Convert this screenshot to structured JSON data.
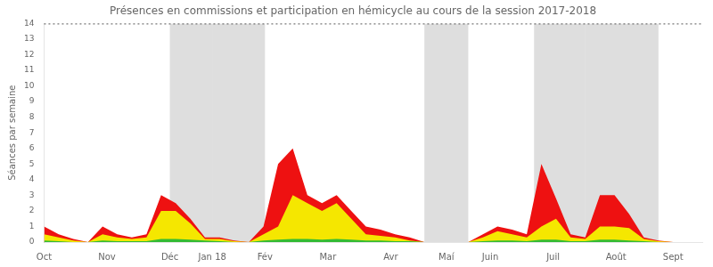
{
  "chart_data": {
    "type": "area",
    "title": "Présences en commissions et participation en hémicycle au cours de la session 2017-2018",
    "ylabel": "Séances par semaine",
    "x": [
      0,
      1,
      2,
      3,
      4,
      5,
      6,
      7,
      8,
      9,
      10,
      11,
      12,
      13,
      14,
      15,
      16,
      17,
      18,
      19,
      20,
      21,
      22,
      23,
      24,
      25,
      26,
      27,
      28,
      29,
      30,
      31,
      32,
      33,
      34,
      35,
      36,
      37,
      38,
      39,
      40,
      41,
      42,
      43,
      44,
      45
    ],
    "series": [
      {
        "color": "#ee1111",
        "values": [
          1.0,
          0.5,
          0.2,
          0.0,
          1.0,
          0.5,
          0.3,
          0.5,
          3.0,
          2.5,
          1.5,
          0.3,
          0.3,
          0.1,
          0.0,
          1.0,
          5.0,
          6.0,
          3.0,
          2.5,
          3.0,
          2.0,
          1.0,
          0.8,
          0.5,
          0.3,
          0.0,
          0.0,
          0.0,
          0.0,
          0.5,
          1.0,
          0.8,
          0.5,
          5.0,
          2.8,
          0.5,
          0.3,
          3.0,
          3.0,
          1.8,
          0.3,
          0.1,
          0.0,
          0.0,
          0.0
        ]
      },
      {
        "color": "#f5e700",
        "values": [
          0.5,
          0.3,
          0.1,
          0.0,
          0.5,
          0.3,
          0.2,
          0.3,
          2.0,
          2.0,
          1.2,
          0.2,
          0.2,
          0.05,
          0.0,
          0.5,
          1.0,
          3.0,
          2.5,
          2.0,
          2.5,
          1.5,
          0.5,
          0.4,
          0.3,
          0.1,
          0.0,
          0.0,
          0.0,
          0.0,
          0.3,
          0.7,
          0.5,
          0.3,
          1.0,
          1.5,
          0.3,
          0.2,
          1.0,
          1.0,
          0.9,
          0.2,
          0.05,
          0.0,
          0.0,
          0.0
        ]
      },
      {
        "color": "#33bb33",
        "values": [
          0.1,
          0.05,
          0.0,
          0.0,
          0.1,
          0.05,
          0.05,
          0.05,
          0.2,
          0.2,
          0.15,
          0.1,
          0.05,
          0.0,
          0.0,
          0.1,
          0.15,
          0.2,
          0.2,
          0.15,
          0.2,
          0.15,
          0.1,
          0.1,
          0.05,
          0.05,
          0.0,
          0.0,
          0.0,
          0.0,
          0.05,
          0.1,
          0.1,
          0.05,
          0.15,
          0.15,
          0.05,
          0.05,
          0.15,
          0.15,
          0.1,
          0.05,
          0.0,
          0.0,
          0.0,
          0.0
        ]
      }
    ],
    "xlim": [
      0,
      45
    ],
    "xticks": [
      {
        "value": 0,
        "label": "Oct"
      },
      {
        "value": 4.3,
        "label": "Nov"
      },
      {
        "value": 8.6,
        "label": "Déc"
      },
      {
        "value": 11.5,
        "label": "Jan 18"
      },
      {
        "value": 15.1,
        "label": "Fév"
      },
      {
        "value": 19.4,
        "label": "Mar"
      },
      {
        "value": 23.7,
        "label": "Avr"
      },
      {
        "value": 27.5,
        "label": "Maí"
      },
      {
        "value": 30.5,
        "label": "Juin"
      },
      {
        "value": 34.8,
        "label": "Juil"
      },
      {
        "value": 39.1,
        "label": "Août"
      },
      {
        "value": 43.0,
        "label": "Sept"
      }
    ],
    "ylim": [
      0,
      14
    ],
    "yticks": [
      0,
      1,
      2,
      3,
      4,
      5,
      6,
      7,
      8,
      9,
      10,
      11,
      12,
      13,
      14
    ],
    "grid": false,
    "stacked": false,
    "shaded_regions": [
      [
        8.6,
        11.5
      ],
      [
        11.5,
        15.1
      ],
      [
        26.0,
        29.0
      ],
      [
        33.5,
        37.0
      ],
      [
        37.0,
        42.0
      ]
    ],
    "hlines": [
      14
    ]
  }
}
